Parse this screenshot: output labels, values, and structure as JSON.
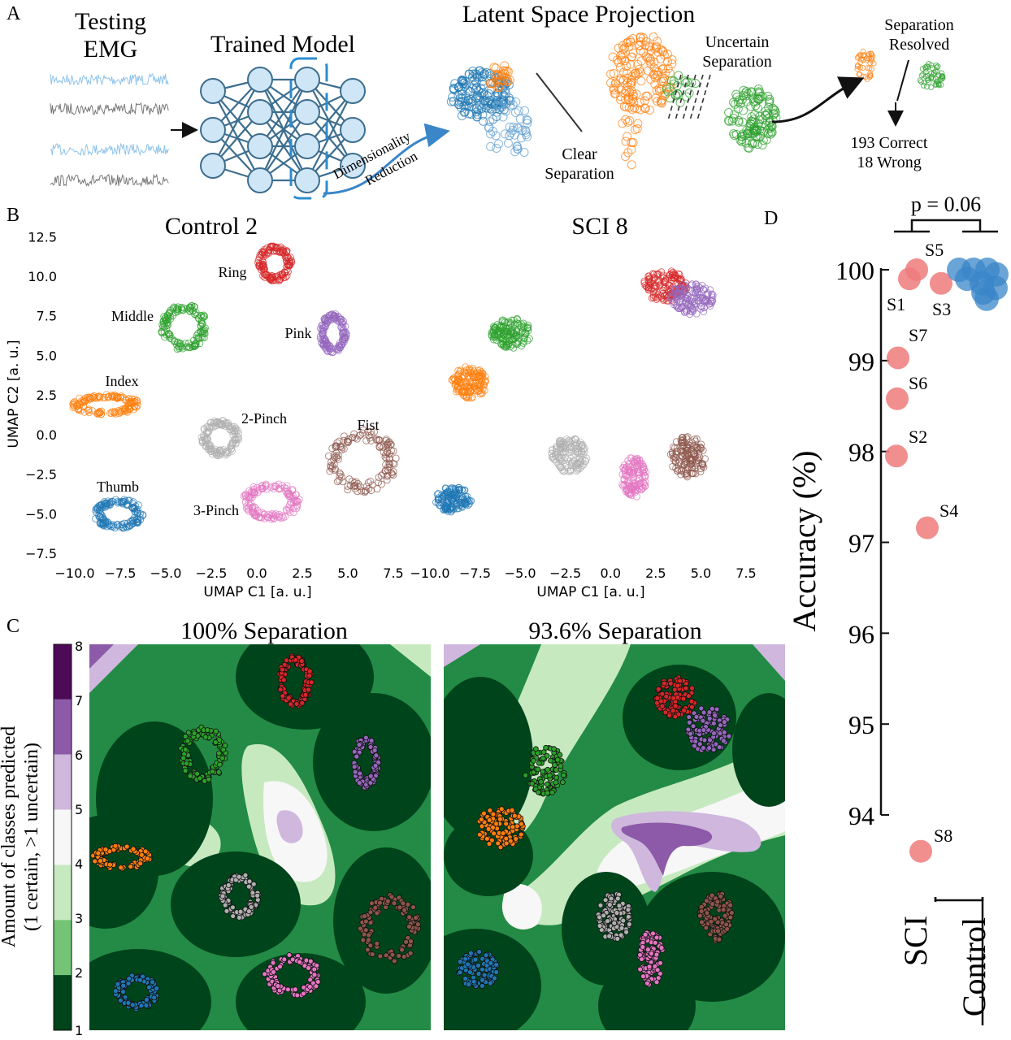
{
  "panels": {
    "a": {
      "letter": "A",
      "testing_emg": [
        "Testing",
        "EMG"
      ],
      "trained_model": "Trained Model",
      "dim_reduction": [
        "Dimensionality",
        "Reduction"
      ],
      "latent_title": "Latent Space Projection",
      "clear_separation": [
        "Clear",
        "Separation"
      ],
      "uncertain_separation": [
        "Uncertain",
        "Separation"
      ],
      "separation_resolved": [
        "Separation",
        "Resolved"
      ],
      "result": [
        "193 Correct",
        "18 Wrong"
      ]
    },
    "b": {
      "letter": "B",
      "subplots": [
        {
          "title": "Control 2"
        },
        {
          "title": "SCI 8"
        }
      ],
      "ylabel": "UMAP C2 [a. u.]",
      "xlabel": "UMAP C1 [a. u.]",
      "yticks": [
        "12.5",
        "10.0",
        "7.5",
        "5.0",
        "2.5",
        "0.0",
        "−2.5",
        "−5.0",
        "−7.5"
      ],
      "xticks": [
        "−10.0",
        "−7.5",
        "−5.0",
        "−2.5",
        "0.0",
        "2.5",
        "5.0",
        "7.5"
      ],
      "cluster_labels": [
        "Ring",
        "Middle",
        "Pink",
        "Index",
        "2-Pinch",
        "Fist",
        "Thumb",
        "3-Pinch"
      ]
    },
    "c": {
      "letter": "C",
      "titles": [
        "100% Separation",
        "93.6% Separation"
      ],
      "colorbar_label": [
        "Amount of classes predicted",
        "(1 certain, >1 uncertain)"
      ],
      "colorbar_ticks": [
        "8",
        "7",
        "6",
        "5",
        "4",
        "3",
        "2",
        "1"
      ]
    },
    "d": {
      "letter": "D",
      "ylabel": "Accuracy (%)",
      "pvalue": "p = 0.06",
      "groups": [
        "SCI",
        "Control"
      ]
    }
  },
  "colors": {
    "thumb": "#1f77b4",
    "index": "#ff7f0e",
    "middle": "#2ca02c",
    "ring": "#d62728",
    "pink": "#9467bd",
    "fist": "#8c564b",
    "three_pinch": "#e377c2",
    "two_pinch": "#b0b0b0",
    "sci_points": "#ef7b7b",
    "control_points": "#3a86c8",
    "greens": [
      "#00441b",
      "#238b45",
      "#74c476",
      "#c7e9c0",
      "#f7f7f7",
      "#cfb7dd",
      "#8c5aa8",
      "#4d0a56"
    ]
  },
  "chart_data": [
    {
      "type": "scatter",
      "title": "Control 2",
      "xlabel": "UMAP C1 [a. u.]",
      "ylabel": "UMAP C2 [a. u.]",
      "xlim": [
        -11.5,
        9.5
      ],
      "ylim": [
        -8.0,
        13.5
      ],
      "clusters": [
        {
          "name": "Ring",
          "center": [
            1.0,
            10.8
          ],
          "rx": 0.9,
          "ry": 1.1,
          "color": "#d62728"
        },
        {
          "name": "Middle",
          "center": [
            -4.0,
            6.8
          ],
          "rx": 1.2,
          "ry": 1.4,
          "color": "#2ca02c"
        },
        {
          "name": "Pink",
          "center": [
            4.2,
            6.4
          ],
          "rx": 0.7,
          "ry": 1.2,
          "color": "#9467bd"
        },
        {
          "name": "Index",
          "center": [
            -8.3,
            1.9
          ],
          "rx": 1.8,
          "ry": 0.6,
          "color": "#ff7f0e"
        },
        {
          "name": "2-Pinch",
          "center": [
            -2.0,
            -0.2
          ],
          "rx": 1.0,
          "ry": 1.1,
          "color": "#b0b0b0"
        },
        {
          "name": "Fist",
          "center": [
            5.8,
            -1.7
          ],
          "rx": 1.8,
          "ry": 1.9,
          "color": "#8c564b"
        },
        {
          "name": "Thumb",
          "center": [
            -7.6,
            -5.0
          ],
          "rx": 1.3,
          "ry": 0.9,
          "color": "#1f77b4"
        },
        {
          "name": "3-Pinch",
          "center": [
            0.8,
            -4.2
          ],
          "rx": 1.5,
          "ry": 1.1,
          "color": "#e377c2"
        }
      ]
    },
    {
      "type": "scatter",
      "title": "SCI 8",
      "xlabel": "UMAP C1 [a. u.]",
      "xlim": [
        -11.5,
        9.5
      ],
      "ylim": [
        -8.0,
        13.5
      ],
      "clusters": [
        {
          "name": "Ring",
          "center": [
            3.0,
            9.4
          ],
          "rx": 1.2,
          "ry": 1.0,
          "color": "#d62728"
        },
        {
          "name": "Pink",
          "center": [
            4.5,
            8.6
          ],
          "rx": 1.2,
          "ry": 1.0,
          "color": "#9467bd"
        },
        {
          "name": "Middle",
          "center": [
            -5.5,
            6.4
          ],
          "rx": 1.1,
          "ry": 1.0,
          "color": "#2ca02c"
        },
        {
          "name": "Index",
          "center": [
            -7.8,
            3.3
          ],
          "rx": 1.0,
          "ry": 1.0,
          "color": "#ff7f0e"
        },
        {
          "name": "2-Pinch",
          "center": [
            -2.3,
            -1.3
          ],
          "rx": 1.0,
          "ry": 1.1,
          "color": "#b0b0b0"
        },
        {
          "name": "Fist",
          "center": [
            4.3,
            -1.4
          ],
          "rx": 1.0,
          "ry": 1.3,
          "color": "#8c564b"
        },
        {
          "name": "3-Pinch",
          "center": [
            1.3,
            -2.7
          ],
          "rx": 0.7,
          "ry": 1.3,
          "color": "#e377c2"
        },
        {
          "name": "Thumb",
          "center": [
            -8.7,
            -4.1
          ],
          "rx": 1.0,
          "ry": 0.8,
          "color": "#1f77b4"
        }
      ]
    },
    {
      "type": "scatter",
      "title": "Accuracy",
      "ylabel": "Accuracy (%)",
      "ylim": [
        93.4,
        100.3
      ],
      "yticks": [
        94,
        95,
        96,
        97,
        98,
        99,
        100
      ],
      "categories": [
        "SCI",
        "Control"
      ],
      "series": [
        {
          "name": "SCI",
          "points": [
            {
              "label": "S5",
              "y": 100.0
            },
            {
              "label": "S1",
              "y": 99.9
            },
            {
              "label": "S3",
              "y": 99.85
            },
            {
              "label": "S7",
              "y": 99.03
            },
            {
              "label": "S6",
              "y": 98.58
            },
            {
              "label": "S2",
              "y": 97.95
            },
            {
              "label": "S4",
              "y": 97.16
            },
            {
              "label": "S8",
              "y": 93.6
            }
          ]
        },
        {
          "name": "Control",
          "points": [
            {
              "y": 100.0
            },
            {
              "y": 100.0
            },
            {
              "y": 100.0
            },
            {
              "y": 99.95
            },
            {
              "y": 99.9
            },
            {
              "y": 99.85
            },
            {
              "y": 99.8
            },
            {
              "y": 99.75
            },
            {
              "y": 99.68
            }
          ]
        }
      ],
      "annotation": "p = 0.06"
    }
  ]
}
